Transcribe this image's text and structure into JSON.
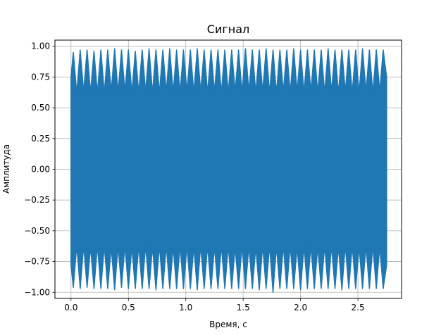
{
  "chart_data": {
    "type": "line",
    "title": "Сигнал",
    "xlabel": "Время, с",
    "ylabel": "Амплитуда",
    "xlim": [
      -0.14,
      2.88
    ],
    "ylim": [
      -1.05,
      1.05
    ],
    "grid": true,
    "x_ticks": [
      0.0,
      0.5,
      1.0,
      1.5,
      2.0,
      2.5
    ],
    "x_tick_labels": [
      "0.0",
      "0.5",
      "1.0",
      "1.5",
      "2.0",
      "2.5"
    ],
    "y_ticks": [
      1.0,
      0.75,
      0.5,
      0.25,
      0.0,
      -0.25,
      -0.5,
      -0.75,
      -1.0
    ],
    "y_tick_labels": [
      "1.00",
      "0.75",
      "0.50",
      "0.25",
      "0.00",
      "−0.25",
      "−0.50",
      "−0.75",
      "−1.00"
    ],
    "series": [
      {
        "color": "#1f77b4",
        "x": [
          0.0,
          0.02,
          0.05,
          0.08,
          0.11,
          0.14,
          0.17,
          0.2,
          0.23,
          0.26,
          0.29,
          0.32,
          0.35,
          0.38,
          0.41,
          0.44,
          0.47,
          0.5,
          0.53,
          0.56,
          0.59,
          0.62,
          0.65,
          0.68,
          0.71,
          0.74,
          0.77,
          0.8,
          0.83,
          0.86,
          0.89,
          0.92,
          0.95,
          0.98,
          1.01,
          1.04,
          1.07,
          1.1,
          1.13,
          1.16,
          1.19,
          1.22,
          1.25,
          1.28,
          1.31,
          1.34,
          1.37,
          1.4,
          1.43,
          1.46,
          1.49,
          1.52,
          1.55,
          1.58,
          1.61,
          1.64,
          1.67,
          1.7,
          1.73,
          1.76,
          1.79,
          1.82,
          1.85,
          1.88,
          1.91,
          1.94,
          1.97,
          2.0,
          2.03,
          2.06,
          2.09,
          2.12,
          2.15,
          2.18,
          2.21,
          2.24,
          2.27,
          2.3,
          2.33,
          2.36,
          2.39,
          2.42,
          2.45,
          2.48,
          2.51,
          2.54,
          2.57,
          2.6,
          2.63,
          2.66,
          2.69,
          2.72,
          2.75
        ],
        "upper": [
          0.75,
          0.95,
          0.62,
          0.97,
          0.63,
          0.97,
          0.62,
          0.96,
          0.62,
          0.97,
          0.62,
          0.97,
          0.63,
          0.98,
          0.62,
          0.97,
          0.63,
          0.97,
          0.62,
          0.96,
          0.62,
          0.97,
          0.63,
          0.98,
          0.62,
          0.97,
          0.62,
          0.97,
          0.63,
          0.98,
          0.62,
          0.97,
          0.62,
          0.97,
          0.63,
          0.97,
          0.62,
          0.98,
          0.63,
          0.97,
          0.62,
          0.97,
          0.63,
          0.97,
          0.62,
          0.97,
          0.62,
          0.97,
          0.63,
          0.97,
          0.62,
          0.98,
          0.63,
          0.97,
          0.62,
          0.97,
          0.63,
          0.98,
          0.62,
          0.97,
          0.62,
          0.97,
          0.63,
          0.97,
          0.62,
          0.98,
          0.63,
          0.97,
          0.62,
          0.97,
          0.63,
          0.97,
          0.62,
          0.97,
          0.62,
          0.98,
          0.63,
          0.97,
          0.62,
          0.97,
          0.63,
          0.97,
          0.62,
          0.97,
          0.62,
          0.98,
          0.63,
          0.97,
          0.62,
          0.97,
          0.63,
          0.97,
          0.75
        ],
        "lower": [
          -0.78,
          -0.96,
          -0.62,
          -0.97,
          -0.62,
          -0.96,
          -0.63,
          -0.97,
          -0.62,
          -0.97,
          -0.62,
          -0.97,
          -0.63,
          -0.98,
          -0.62,
          -0.96,
          -0.62,
          -0.97,
          -0.63,
          -0.97,
          -0.62,
          -0.97,
          -0.62,
          -0.97,
          -0.63,
          -0.98,
          -0.62,
          -0.97,
          -0.62,
          -0.97,
          -0.63,
          -0.97,
          -0.62,
          -0.97,
          -0.62,
          -0.97,
          -0.63,
          -0.98,
          -0.62,
          -0.97,
          -0.62,
          -0.97,
          -0.63,
          -0.97,
          -0.62,
          -0.97,
          -0.62,
          -0.97,
          -0.63,
          -0.97,
          -0.62,
          -0.97,
          -0.62,
          -0.97,
          -0.63,
          -0.98,
          -0.62,
          -0.97,
          -0.62,
          -1.0,
          -0.63,
          -0.97,
          -0.62,
          -0.97,
          -0.62,
          -0.97,
          -0.63,
          -0.98,
          -0.62,
          -0.97,
          -0.62,
          -0.97,
          -0.63,
          -0.97,
          -0.62,
          -0.97,
          -0.62,
          -0.97,
          -0.63,
          -0.98,
          -0.62,
          -0.97,
          -0.62,
          -0.97,
          -0.63,
          -0.97,
          -0.62,
          -0.97,
          -0.62,
          -0.97,
          -0.63,
          -0.97,
          -0.78
        ]
      }
    ]
  }
}
